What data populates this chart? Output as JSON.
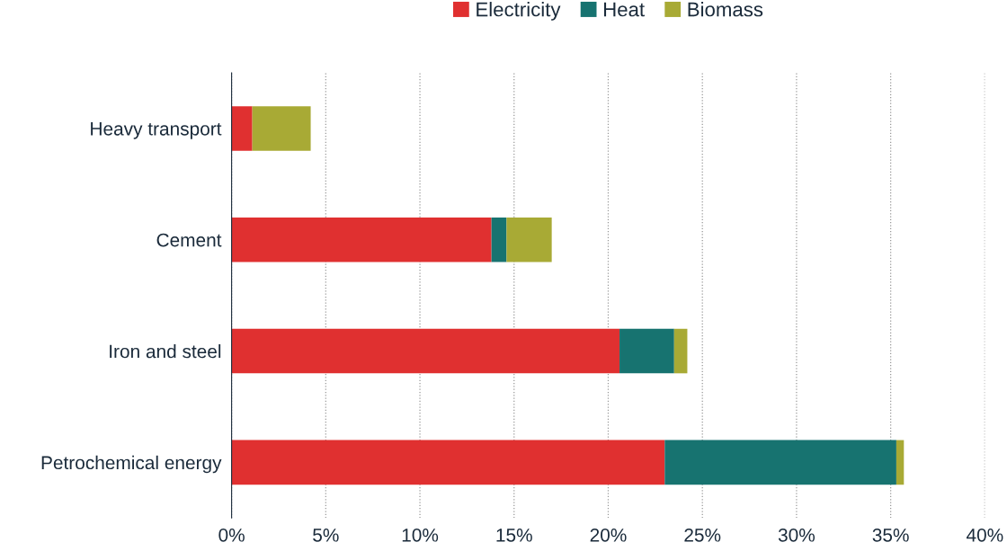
{
  "chart_data": {
    "type": "bar",
    "orientation": "horizontal",
    "stacked": true,
    "categories": [
      "Heavy transport",
      "Cement",
      "Iron and steel",
      "Petrochemical energy"
    ],
    "series": [
      {
        "name": "Electricity",
        "color": "#e03030",
        "values": [
          1.1,
          13.8,
          20.6,
          23.0
        ]
      },
      {
        "name": "Heat",
        "color": "#177370",
        "values": [
          0,
          0.8,
          2.9,
          12.3
        ]
      },
      {
        "name": "Biomass",
        "color": "#a8aa35",
        "values": [
          3.1,
          2.4,
          0.7,
          0.4
        ]
      }
    ],
    "xlim": [
      0,
      40
    ],
    "xticks": [
      {
        "value": 0,
        "label": "0%"
      },
      {
        "value": 5,
        "label": "5%"
      },
      {
        "value": 10,
        "label": "10%"
      },
      {
        "value": 15,
        "label": "15%"
      },
      {
        "value": 20,
        "label": "20%"
      },
      {
        "value": 25,
        "label": "25%"
      },
      {
        "value": 30,
        "label": "30%"
      },
      {
        "value": 35,
        "label": "35%"
      },
      {
        "value": 40,
        "label": "40%"
      }
    ],
    "grid": "x",
    "legend": "top"
  }
}
